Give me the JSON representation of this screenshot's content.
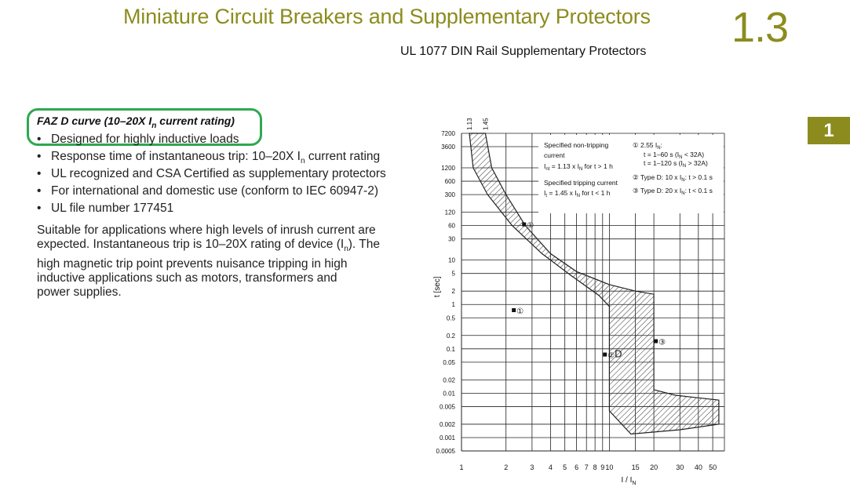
{
  "header": {
    "title": "Miniature Circuit Breakers and Supplementary Protectors",
    "section_number": "1.3",
    "subtitle": "UL 1077 DIN Rail Supplementary Protectors",
    "tab_label": "1"
  },
  "colors": {
    "accent": "#8c8c1e",
    "highlight_box": "#2fa84f"
  },
  "product": {
    "heading_prefix": "FAZ D curve (10–20X I",
    "heading_sub": "n",
    "heading_suffix": " current rating)",
    "features": [
      "Designed for highly inductive loads",
      "Response time of instantaneous trip: 10–20X I",
      "UL recognized and CSA Certified as supplementary protectors",
      "For international and domestic use (conform to IEC 60947-2)",
      "UL file number 177451"
    ],
    "feature_2_sub": "n",
    "feature_2_suffix": " current rating",
    "description_lines": [
      "Suitable for applications where high levels of inrush current are",
      "expected. Instantaneous trip is 10–20X rating of device (I",
      "high magnetic trip point prevents nuisance tripping in high",
      "inductive applications such as motors, transformers and",
      "power supplies."
    ],
    "desc_line2_sub": "n",
    "desc_line2_suffix": "). The"
  },
  "chart_data": {
    "type": "area",
    "curve_label": "D",
    "xlabel": "I / I",
    "xlabel_sub": "N",
    "ylabel": "t [sec]",
    "x_scale": "log",
    "y_scale": "log",
    "xlim": [
      1,
      60
    ],
    "ylim": [
      0.0005,
      7200
    ],
    "x_ticks": [
      "1",
      "2",
      "3",
      "4",
      "5",
      "6",
      "7",
      "8",
      "9",
      "10",
      "15",
      "20",
      "30",
      "40",
      "50"
    ],
    "x_tick_values": [
      1,
      2,
      3,
      4,
      5,
      6,
      7,
      8,
      9,
      10,
      15,
      20,
      30,
      40,
      50
    ],
    "y_ticks": [
      "7200",
      "3600",
      "1200",
      "600",
      "300",
      "120",
      "60",
      "30",
      "10",
      "5",
      "2",
      "1",
      "0.5",
      "0.2",
      "0.1",
      "0.05",
      "0.02",
      "0.01",
      "0.005",
      "0.002",
      "0.001",
      "0.0005"
    ],
    "y_tick_values": [
      7200,
      3600,
      1200,
      600,
      300,
      120,
      60,
      30,
      10,
      5,
      2,
      1,
      0.5,
      0.2,
      0.1,
      0.05,
      0.02,
      0.01,
      0.005,
      0.002,
      0.001,
      0.0005
    ],
    "top_markers": [
      {
        "label": "1.13",
        "x": 1.13
      },
      {
        "label": "1.45",
        "x": 1.45
      }
    ],
    "band_upper_boundary": [
      {
        "x": 1.45,
        "y": 7200
      },
      {
        "x": 1.6,
        "y": 1200
      },
      {
        "x": 2.0,
        "y": 300
      },
      {
        "x": 2.7,
        "y": 60
      },
      {
        "x": 4,
        "y": 14
      },
      {
        "x": 6,
        "y": 5.5
      },
      {
        "x": 10,
        "y": 2.8
      },
      {
        "x": 15,
        "y": 2
      },
      {
        "x": 20,
        "y": 1.7
      },
      {
        "x": 20,
        "y": 0.012
      },
      {
        "x": 28,
        "y": 0.009
      },
      {
        "x": 55,
        "y": 0.007
      }
    ],
    "band_lower_boundary": [
      {
        "x": 1.13,
        "y": 7200
      },
      {
        "x": 1.2,
        "y": 1200
      },
      {
        "x": 1.5,
        "y": 300
      },
      {
        "x": 2.2,
        "y": 60
      },
      {
        "x": 3.5,
        "y": 14
      },
      {
        "x": 5.5,
        "y": 4.5
      },
      {
        "x": 8.5,
        "y": 1.6
      },
      {
        "x": 10,
        "y": 0.9
      },
      {
        "x": 10,
        "y": 0.004
      },
      {
        "x": 14,
        "y": 0.0012
      },
      {
        "x": 30,
        "y": 0.0015
      },
      {
        "x": 55,
        "y": 0.002
      }
    ],
    "annotations": [
      {
        "symbol": "①",
        "x": 2.7,
        "y": 60
      },
      {
        "symbol": "①",
        "x": 2.3,
        "y": 0.7
      },
      {
        "symbol": "②",
        "x": 9.5,
        "y": 0.07
      },
      {
        "symbol": "③",
        "x": 21,
        "y": 0.14
      }
    ],
    "legend_lines": [
      {
        "text": "Specified non-tripping",
        "sub": ""
      },
      {
        "text": "current",
        "sub": ""
      },
      {
        "text": "I",
        "sub": "nt",
        "suffix": " = 1.13 x I",
        "sub2": "N",
        "suffix2": " for t > 1 h"
      },
      {
        "text": "Specified tripping current",
        "sub": ""
      },
      {
        "text": "I",
        "sub": "t",
        "suffix": " = 1.45 x I",
        "sub2": "N",
        "suffix2": " for t < 1 h"
      }
    ],
    "notes": [
      {
        "text": "① 2.55 I",
        "sub": "N",
        "suffix": ":"
      },
      {
        "text": "t = 1–60 s (I",
        "sub": "N",
        "suffix": " < 32A)"
      },
      {
        "text": "t = 1–120 s (I",
        "sub": "N",
        "suffix": " > 32A)"
      },
      {
        "text": "② Type D: 10 x I",
        "sub": "N",
        "suffix": ": t > 0.1 s"
      },
      {
        "text": "③ Type D: 20 x I",
        "sub": "N",
        "suffix": ": t < 0.1 s"
      }
    ]
  }
}
